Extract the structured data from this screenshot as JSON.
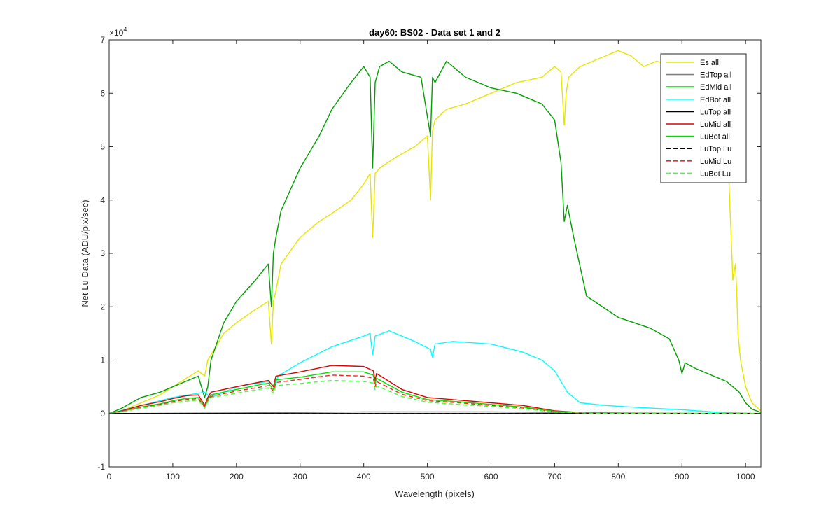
{
  "chart_data": {
    "type": "line",
    "title": "day60: BS02 - Data set 1 and 2",
    "xlabel": "Wavelength (pixels)",
    "ylabel": "Net Lu Data (ADU/pix/sec)",
    "xlim": [
      0,
      1024
    ],
    "ylim": [
      -1,
      7
    ],
    "y_exponent_label": "×10",
    "y_exponent_value": "4",
    "x_ticks": [
      0,
      100,
      200,
      300,
      400,
      500,
      600,
      700,
      800,
      900,
      1000
    ],
    "y_ticks": [
      -1,
      0,
      1,
      2,
      3,
      4,
      5,
      6,
      7
    ],
    "legend_position": "top-right",
    "grid": false,
    "series": [
      {
        "name": "Es  all",
        "color": "#e5e500",
        "dash": "solid",
        "x": [
          0,
          20,
          50,
          80,
          100,
          120,
          140,
          150,
          155,
          160,
          180,
          200,
          230,
          250,
          255,
          258,
          262,
          270,
          300,
          330,
          350,
          380,
          400,
          410,
          414,
          418,
          425,
          450,
          480,
          500,
          505,
          508,
          512,
          530,
          560,
          600,
          640,
          680,
          700,
          710,
          715,
          718,
          722,
          740,
          760,
          780,
          800,
          820,
          840,
          860,
          900,
          940,
          970,
          980,
          984,
          986,
          988,
          992,
          1000,
          1010,
          1024
        ],
        "y": [
          0,
          0.05,
          0.2,
          0.35,
          0.5,
          0.65,
          0.8,
          0.7,
          1.0,
          1.1,
          1.5,
          1.7,
          1.95,
          2.1,
          1.3,
          2.1,
          2.3,
          2.8,
          3.3,
          3.6,
          3.75,
          4.0,
          4.3,
          4.5,
          3.3,
          4.5,
          4.6,
          4.8,
          5.0,
          5.2,
          4.0,
          5.3,
          5.5,
          5.7,
          5.8,
          6.0,
          6.2,
          6.3,
          6.5,
          6.4,
          5.4,
          6.0,
          6.3,
          6.5,
          6.6,
          6.7,
          6.8,
          6.7,
          6.5,
          6.6,
          6.5,
          6.4,
          5.5,
          2.5,
          2.8,
          2.3,
          1.5,
          1.0,
          0.5,
          0.2,
          0.05
        ]
      },
      {
        "name": "EdTop  all",
        "color": "#808080",
        "dash": "solid",
        "x": [
          0,
          200,
          400,
          600,
          800,
          1024
        ],
        "y": [
          0,
          0.01,
          0.03,
          0.03,
          0.01,
          0
        ]
      },
      {
        "name": "EdMid  all",
        "color": "#00a000",
        "dash": "solid",
        "x": [
          0,
          20,
          50,
          80,
          100,
          120,
          140,
          150,
          155,
          160,
          180,
          200,
          230,
          250,
          255,
          258,
          262,
          270,
          300,
          330,
          350,
          380,
          400,
          410,
          414,
          418,
          425,
          440,
          460,
          490,
          505,
          508,
          512,
          530,
          560,
          600,
          640,
          680,
          700,
          710,
          715,
          720,
          730,
          750,
          800,
          850,
          880,
          895,
          900,
          905,
          920,
          950,
          970,
          990,
          1000,
          1010,
          1024
        ],
        "y": [
          0,
          0.1,
          0.3,
          0.4,
          0.5,
          0.6,
          0.7,
          0.3,
          0.5,
          1.0,
          1.7,
          2.1,
          2.5,
          2.8,
          2.0,
          3.0,
          3.3,
          3.8,
          4.6,
          5.2,
          5.7,
          6.2,
          6.5,
          6.3,
          4.6,
          6.2,
          6.5,
          6.6,
          6.4,
          6.3,
          5.2,
          6.3,
          6.2,
          6.6,
          6.3,
          6.1,
          6.0,
          5.8,
          5.5,
          4.7,
          3.6,
          3.9,
          3.3,
          2.2,
          1.8,
          1.6,
          1.4,
          1.0,
          0.75,
          0.95,
          0.85,
          0.7,
          0.6,
          0.4,
          0.2,
          0.08,
          0.02
        ]
      },
      {
        "name": "EdBot  all",
        "color": "#00ffff",
        "dash": "solid",
        "x": [
          0,
          100,
          150,
          160,
          200,
          250,
          260,
          265,
          300,
          350,
          400,
          410,
          414,
          418,
          440,
          480,
          505,
          508,
          512,
          540,
          600,
          650,
          680,
          700,
          720,
          740,
          780,
          820,
          900,
          960,
          1024
        ],
        "y": [
          0,
          0.3,
          0.4,
          0.3,
          0.5,
          0.6,
          0.5,
          0.7,
          0.95,
          1.25,
          1.45,
          1.5,
          1.1,
          1.45,
          1.55,
          1.35,
          1.2,
          1.05,
          1.3,
          1.35,
          1.3,
          1.15,
          1.0,
          0.8,
          0.4,
          0.2,
          0.15,
          0.12,
          0.07,
          0.02,
          0
        ]
      },
      {
        "name": "LuTop  all",
        "color": "#000000",
        "dash": "solid",
        "x": [
          0,
          1024
        ],
        "y": [
          0,
          0
        ]
      },
      {
        "name": "LuMid  all",
        "color": "#e00000",
        "dash": "solid",
        "x": [
          0,
          20,
          50,
          80,
          100,
          120,
          140,
          150,
          155,
          160,
          200,
          250,
          258,
          262,
          300,
          350,
          400,
          415,
          418,
          420,
          460,
          500,
          550,
          600,
          650,
          700,
          750,
          800,
          1024
        ],
        "y": [
          0,
          0.05,
          0.15,
          0.22,
          0.28,
          0.33,
          0.35,
          0.15,
          0.3,
          0.4,
          0.5,
          0.62,
          0.5,
          0.7,
          0.78,
          0.9,
          0.88,
          0.8,
          0.62,
          0.75,
          0.45,
          0.3,
          0.25,
          0.2,
          0.15,
          0.05,
          0.01,
          0,
          0
        ]
      },
      {
        "name": "LuBot  all",
        "color": "#00e000",
        "dash": "solid",
        "x": [
          0,
          20,
          50,
          80,
          100,
          120,
          140,
          150,
          155,
          160,
          200,
          250,
          258,
          262,
          300,
          350,
          400,
          415,
          418,
          420,
          460,
          500,
          550,
          600,
          650,
          700,
          750,
          800,
          1024
        ],
        "y": [
          0,
          0.04,
          0.12,
          0.18,
          0.24,
          0.28,
          0.3,
          0.12,
          0.26,
          0.35,
          0.45,
          0.57,
          0.45,
          0.63,
          0.68,
          0.78,
          0.78,
          0.72,
          0.55,
          0.66,
          0.4,
          0.26,
          0.22,
          0.17,
          0.12,
          0.04,
          0.01,
          0,
          0
        ]
      },
      {
        "name": "LuTop  Lu",
        "color": "#000000",
        "dash": "dashed",
        "x": [
          0,
          1024
        ],
        "y": [
          0,
          0
        ]
      },
      {
        "name": "LuMid  Lu",
        "color": "#ff2020",
        "dash": "dashed",
        "x": [
          0,
          20,
          50,
          80,
          100,
          120,
          140,
          150,
          155,
          160,
          200,
          250,
          258,
          262,
          300,
          350,
          400,
          415,
          418,
          420,
          460,
          500,
          550,
          600,
          650,
          700,
          750,
          800,
          1024
        ],
        "y": [
          0,
          0.04,
          0.11,
          0.17,
          0.22,
          0.26,
          0.28,
          0.12,
          0.24,
          0.32,
          0.42,
          0.52,
          0.42,
          0.58,
          0.64,
          0.72,
          0.7,
          0.66,
          0.5,
          0.6,
          0.36,
          0.24,
          0.2,
          0.15,
          0.1,
          0.03,
          0.01,
          0,
          0
        ]
      },
      {
        "name": "LuBot  Lu",
        "color": "#40ff40",
        "dash": "dashed",
        "x": [
          0,
          20,
          50,
          80,
          100,
          120,
          140,
          150,
          155,
          160,
          200,
          250,
          258,
          262,
          300,
          350,
          400,
          415,
          418,
          420,
          460,
          500,
          550,
          600,
          650,
          700,
          750,
          800,
          1024
        ],
        "y": [
          0,
          0.03,
          0.1,
          0.15,
          0.2,
          0.23,
          0.25,
          0.1,
          0.22,
          0.3,
          0.38,
          0.48,
          0.38,
          0.52,
          0.56,
          0.62,
          0.6,
          0.57,
          0.44,
          0.52,
          0.32,
          0.21,
          0.17,
          0.13,
          0.09,
          0.03,
          0.01,
          0,
          0
        ]
      }
    ]
  }
}
